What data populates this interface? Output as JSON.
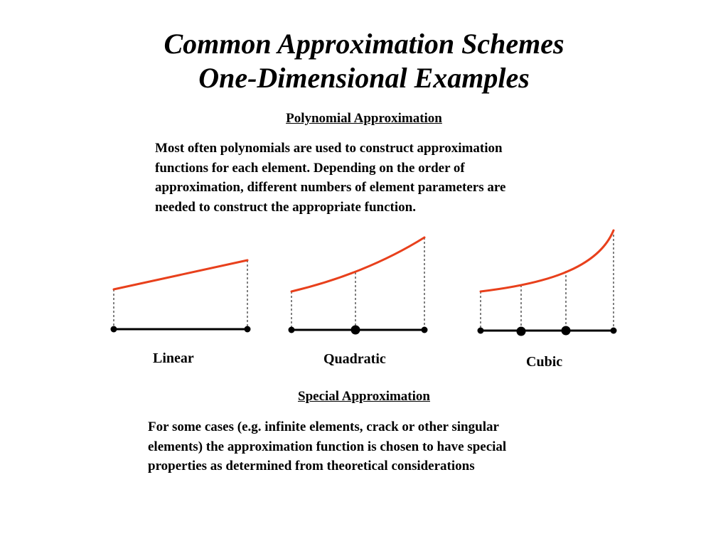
{
  "title": {
    "line1": "Common Approximation Schemes",
    "line2": "One-Dimensional Examples"
  },
  "polynomial": {
    "heading": "Polynomial Approximation",
    "lines": [
      "Most often polynomials are used to construct approximation",
      "functions for each element.  Depending on the order of",
      "approximation, different numbers of element parameters are",
      "needed to construct the appropriate function."
    ]
  },
  "diagrams": [
    {
      "label": "Linear",
      "nodes": 2
    },
    {
      "label": "Quadratic",
      "nodes": 3
    },
    {
      "label": "Cubic",
      "nodes": 4
    }
  ],
  "colors": {
    "curve": "#e8401c",
    "element": "#000000",
    "dashed": "#000000"
  },
  "special": {
    "heading": "Special Approximation",
    "lines": [
      "For some cases (e.g. infinite elements, crack or other singular",
      "elements) the approximation function is chosen to have special",
      "properties as determined from theoretical considerations"
    ]
  }
}
